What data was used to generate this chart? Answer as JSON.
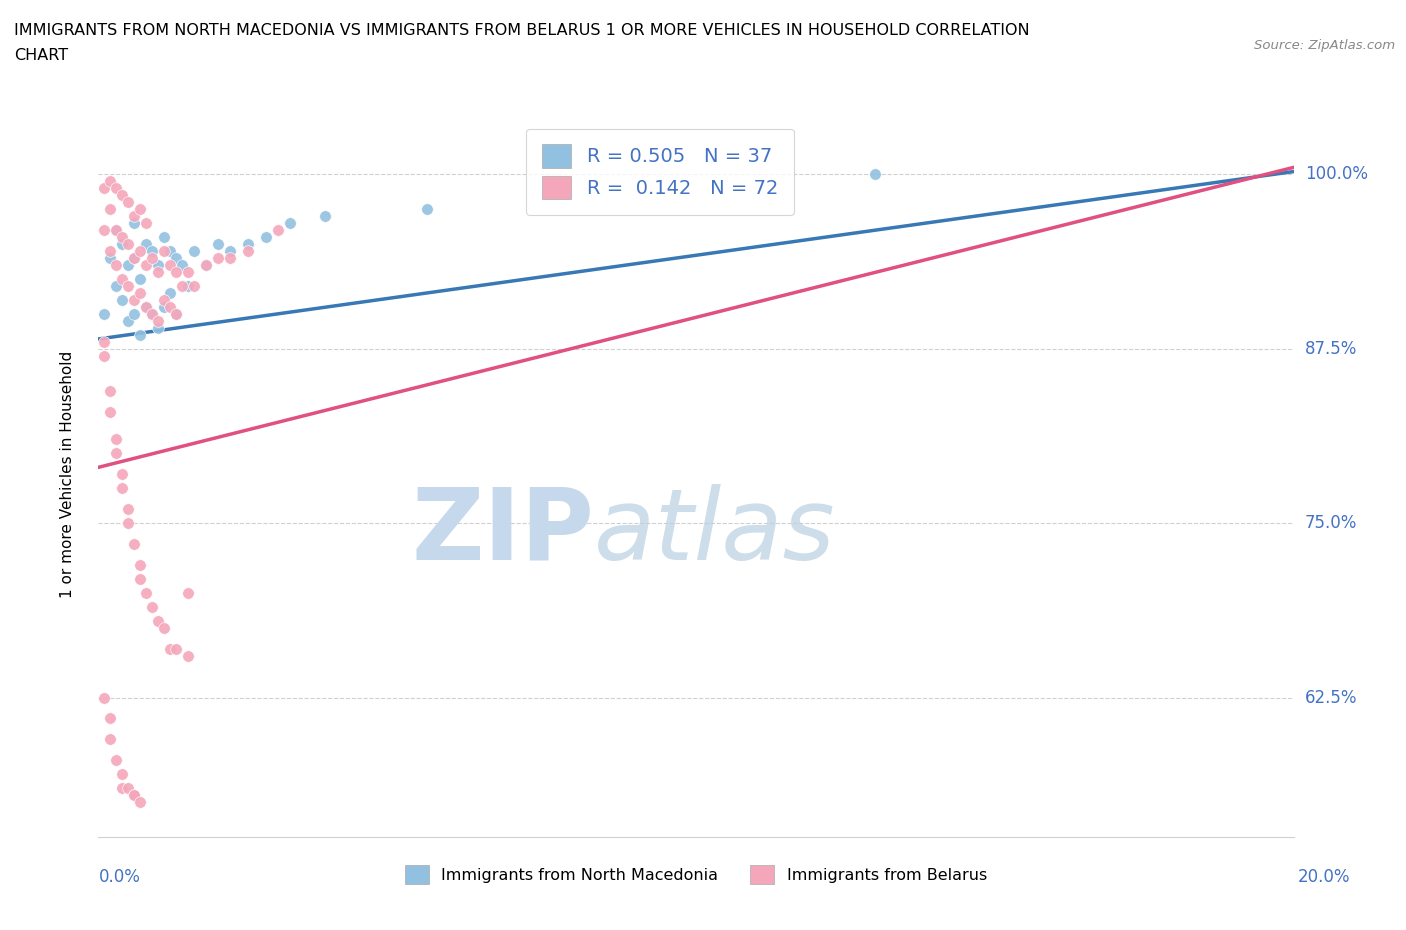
{
  "title1": "IMMIGRANTS FROM NORTH MACEDONIA VS IMMIGRANTS FROM BELARUS 1 OR MORE VEHICLES IN HOUSEHOLD CORRELATION",
  "title2": "CHART",
  "source": "Source: ZipAtlas.com",
  "ylabel": "1 or more Vehicles in Household",
  "xlim": [
    0.0,
    0.2
  ],
  "ylim": [
    0.525,
    1.045
  ],
  "yticks": [
    0.625,
    0.75,
    0.875,
    1.0
  ],
  "ytick_labels": [
    "62.5%",
    "75.0%",
    "87.5%",
    "100.0%"
  ],
  "legend_R_blue": "0.505",
  "legend_N_blue": "37",
  "legend_R_pink": "0.142",
  "legend_N_pink": "72",
  "blue_color": "#92c0e0",
  "pink_color": "#f4a7bb",
  "blue_line_color": "#3878b4",
  "pink_line_color": "#e05080",
  "watermark_zip": "ZIP",
  "watermark_atlas": "atlas",
  "watermark_color": "#c5d8ec",
  "blue_scatter_x": [
    0.001,
    0.002,
    0.003,
    0.003,
    0.004,
    0.004,
    0.005,
    0.005,
    0.006,
    0.006,
    0.006,
    0.007,
    0.007,
    0.008,
    0.008,
    0.009,
    0.009,
    0.01,
    0.01,
    0.011,
    0.011,
    0.012,
    0.012,
    0.013,
    0.013,
    0.014,
    0.015,
    0.016,
    0.018,
    0.02,
    0.022,
    0.025,
    0.028,
    0.032,
    0.038,
    0.055,
    0.13
  ],
  "blue_scatter_y": [
    0.9,
    0.94,
    0.92,
    0.96,
    0.91,
    0.95,
    0.895,
    0.935,
    0.9,
    0.94,
    0.965,
    0.885,
    0.925,
    0.905,
    0.95,
    0.9,
    0.945,
    0.89,
    0.935,
    0.905,
    0.955,
    0.915,
    0.945,
    0.9,
    0.94,
    0.935,
    0.92,
    0.945,
    0.935,
    0.95,
    0.945,
    0.95,
    0.955,
    0.965,
    0.97,
    0.975,
    1.0
  ],
  "pink_scatter_x": [
    0.001,
    0.001,
    0.002,
    0.002,
    0.002,
    0.003,
    0.003,
    0.003,
    0.004,
    0.004,
    0.004,
    0.005,
    0.005,
    0.005,
    0.006,
    0.006,
    0.006,
    0.007,
    0.007,
    0.007,
    0.008,
    0.008,
    0.008,
    0.009,
    0.009,
    0.01,
    0.01,
    0.011,
    0.011,
    0.012,
    0.012,
    0.013,
    0.013,
    0.014,
    0.015,
    0.016,
    0.018,
    0.02,
    0.022,
    0.025,
    0.001,
    0.001,
    0.002,
    0.002,
    0.003,
    0.003,
    0.004,
    0.004,
    0.005,
    0.005,
    0.006,
    0.007,
    0.007,
    0.008,
    0.009,
    0.01,
    0.011,
    0.012,
    0.013,
    0.015,
    0.001,
    0.002,
    0.002,
    0.003,
    0.004,
    0.004,
    0.005,
    0.006,
    0.006,
    0.007,
    0.015,
    0.03
  ],
  "pink_scatter_y": [
    0.96,
    0.99,
    0.945,
    0.975,
    0.995,
    0.935,
    0.96,
    0.99,
    0.925,
    0.955,
    0.985,
    0.92,
    0.95,
    0.98,
    0.91,
    0.94,
    0.97,
    0.915,
    0.945,
    0.975,
    0.905,
    0.935,
    0.965,
    0.9,
    0.94,
    0.895,
    0.93,
    0.91,
    0.945,
    0.905,
    0.935,
    0.9,
    0.93,
    0.92,
    0.93,
    0.92,
    0.935,
    0.94,
    0.94,
    0.945,
    0.88,
    0.87,
    0.845,
    0.83,
    0.81,
    0.8,
    0.785,
    0.775,
    0.76,
    0.75,
    0.735,
    0.72,
    0.71,
    0.7,
    0.69,
    0.68,
    0.675,
    0.66,
    0.66,
    0.655,
    0.625,
    0.61,
    0.595,
    0.58,
    0.57,
    0.56,
    0.56,
    0.555,
    0.555,
    0.55,
    0.7,
    0.96
  ]
}
